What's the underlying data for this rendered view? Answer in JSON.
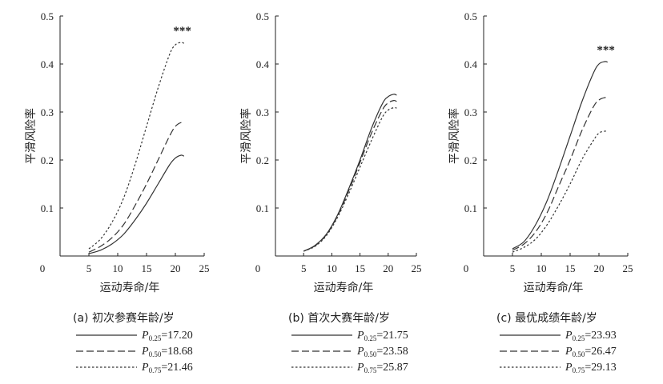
{
  "chart_data": [
    {
      "type": "line",
      "caption": "(a) 初次参赛年龄/岁",
      "xlabel": "运动寿命/年",
      "ylabel": "平滑风险率",
      "xlim": [
        0,
        25
      ],
      "ylim": [
        0,
        0.5
      ],
      "xticks": [
        "0",
        "5",
        "10",
        "15",
        "20",
        "25"
      ],
      "yticks": [
        "0.1",
        "0.2",
        "0.3",
        "0.4",
        "0.5"
      ],
      "annotation": "***",
      "series": [
        {
          "name": "P0.25=17.20",
          "p": "P",
          "sub": "0.25",
          "val": "=17.20",
          "style": "solid",
          "x": [
            5,
            7,
            9,
            11,
            13,
            15,
            17,
            19,
            20,
            21,
            21.5
          ],
          "y": [
            0.005,
            0.012,
            0.025,
            0.045,
            0.075,
            0.11,
            0.15,
            0.19,
            0.204,
            0.21,
            0.208
          ]
        },
        {
          "name": "P0.50=18.68",
          "p": "P",
          "sub": "0.50",
          "val": "=18.68",
          "style": "dashed",
          "x": [
            5,
            7,
            9,
            11,
            13,
            15,
            17,
            19,
            20,
            21,
            21.5
          ],
          "y": [
            0.008,
            0.02,
            0.038,
            0.065,
            0.105,
            0.15,
            0.2,
            0.25,
            0.27,
            0.278,
            0.276
          ]
        },
        {
          "name": "P0.75=21.46",
          "p": "P",
          "sub": "0.75",
          "val": "=21.46",
          "style": "dotted",
          "x": [
            5,
            7,
            9,
            11,
            13,
            15,
            17,
            19,
            20,
            21,
            21.5
          ],
          "y": [
            0.015,
            0.035,
            0.07,
            0.12,
            0.19,
            0.27,
            0.35,
            0.42,
            0.44,
            0.445,
            0.443
          ]
        }
      ]
    },
    {
      "type": "line",
      "caption": "(b) 首次大赛年龄/岁",
      "xlabel": "运动寿命/年",
      "ylabel": "平滑风险率",
      "xlim": [
        0,
        25
      ],
      "ylim": [
        0,
        0.5
      ],
      "xticks": [
        "0",
        "5",
        "10",
        "15",
        "20",
        "25"
      ],
      "yticks": [
        "0.1",
        "0.2",
        "0.3",
        "0.4",
        "0.5"
      ],
      "annotation": "",
      "series": [
        {
          "name": "P0.25=21.75",
          "p": "P",
          "sub": "0.25",
          "val": "=21.75",
          "style": "solid",
          "x": [
            5,
            7,
            9,
            11,
            13,
            15,
            17,
            19,
            20,
            21,
            21.5
          ],
          "y": [
            0.01,
            0.022,
            0.045,
            0.085,
            0.14,
            0.2,
            0.265,
            0.318,
            0.332,
            0.337,
            0.335
          ]
        },
        {
          "name": "P0.50=23.58",
          "p": "P",
          "sub": "0.50",
          "val": "=23.58",
          "style": "dashed",
          "x": [
            5,
            7,
            9,
            11,
            13,
            15,
            17,
            19,
            20,
            21,
            21.5
          ],
          "y": [
            0.01,
            0.021,
            0.044,
            0.083,
            0.136,
            0.195,
            0.255,
            0.305,
            0.319,
            0.324,
            0.322
          ]
        },
        {
          "name": "P0.75=25.87",
          "p": "P",
          "sub": "0.75",
          "val": "=25.87",
          "style": "dotted",
          "x": [
            5,
            7,
            9,
            11,
            13,
            15,
            17,
            19,
            20,
            21,
            21.5
          ],
          "y": [
            0.01,
            0.02,
            0.042,
            0.08,
            0.13,
            0.185,
            0.24,
            0.29,
            0.304,
            0.309,
            0.308
          ]
        }
      ]
    },
    {
      "type": "line",
      "caption": "(c) 最优成绩年龄/岁",
      "xlabel": "运动寿命/年",
      "ylabel": "平滑风险率",
      "xlim": [
        0,
        25
      ],
      "ylim": [
        0,
        0.5
      ],
      "xticks": [
        "0",
        "5",
        "10",
        "15",
        "20",
        "25"
      ],
      "yticks": [
        "0.1",
        "0.2",
        "0.3",
        "0.4",
        "0.5"
      ],
      "annotation": "***",
      "series": [
        {
          "name": "P0.25=23.93",
          "p": "P",
          "sub": "0.25",
          "val": "=23.93",
          "style": "solid",
          "x": [
            5,
            7,
            9,
            11,
            13,
            15,
            17,
            19,
            20,
            21,
            21.5
          ],
          "y": [
            0.015,
            0.03,
            0.065,
            0.115,
            0.18,
            0.25,
            0.32,
            0.38,
            0.4,
            0.405,
            0.404
          ]
        },
        {
          "name": "P0.50=26.47",
          "p": "P",
          "sub": "0.50",
          "val": "=26.47",
          "style": "dashed",
          "x": [
            5,
            7,
            9,
            11,
            13,
            15,
            17,
            19,
            20,
            21,
            21.5
          ],
          "y": [
            0.012,
            0.025,
            0.05,
            0.09,
            0.145,
            0.2,
            0.26,
            0.31,
            0.325,
            0.33,
            0.329
          ]
        },
        {
          "name": "P0.75=29.13",
          "p": "P",
          "sub": "0.75",
          "val": "=29.13",
          "style": "dotted",
          "x": [
            5,
            7,
            9,
            11,
            13,
            15,
            17,
            19,
            20,
            21,
            21.5
          ],
          "y": [
            0.008,
            0.018,
            0.035,
            0.065,
            0.105,
            0.15,
            0.2,
            0.24,
            0.256,
            0.26,
            0.259
          ]
        }
      ]
    }
  ]
}
